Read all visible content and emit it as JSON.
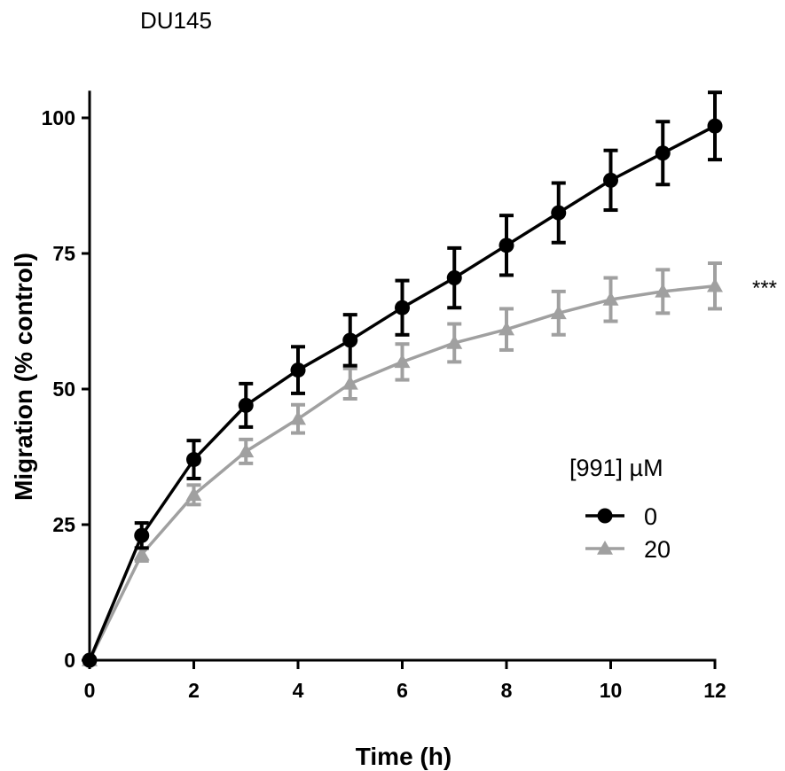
{
  "chart_data": {
    "type": "line",
    "title": "DU145",
    "xlabel": "Time (h)",
    "ylabel": "Migration (% control)",
    "xlim": [
      0,
      12
    ],
    "ylim": [
      0,
      105
    ],
    "x_ticks": [
      0,
      2,
      4,
      6,
      8,
      10,
      12
    ],
    "y_ticks": [
      0,
      25,
      50,
      75,
      100
    ],
    "grid": false,
    "legend": {
      "title": "[991] µM",
      "position": "right"
    },
    "annotation": "***",
    "x": [
      0,
      1,
      2,
      3,
      4,
      5,
      6,
      7,
      8,
      9,
      10,
      11,
      12
    ],
    "series": [
      {
        "name": "0",
        "color": "#000000",
        "marker": "circle",
        "values": [
          0,
          23,
          37,
          47,
          53.5,
          59,
          65,
          70.5,
          76.5,
          82.5,
          88.5,
          93.5,
          98.5
        ],
        "errors": [
          0,
          2.3,
          3.5,
          4.0,
          4.3,
          4.7,
          5.0,
          5.5,
          5.5,
          5.5,
          5.5,
          5.8,
          6.2
        ]
      },
      {
        "name": "20",
        "color": "#a0a0a0",
        "marker": "triangle",
        "values": [
          0,
          19.5,
          30.5,
          38.5,
          44.5,
          51,
          55,
          58.5,
          61,
          64,
          66.5,
          68,
          69
        ],
        "errors": [
          0,
          1.2,
          1.8,
          2.2,
          2.6,
          2.8,
          3.3,
          3.5,
          3.8,
          4.0,
          4.0,
          4.0,
          4.2
        ]
      }
    ]
  }
}
